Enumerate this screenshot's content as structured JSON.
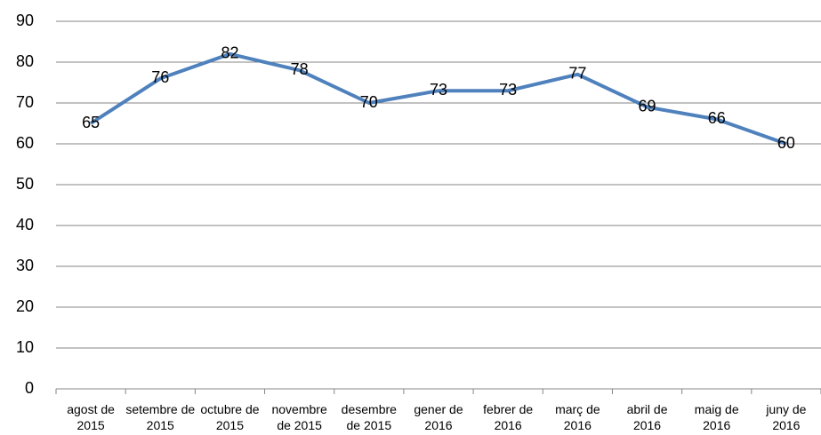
{
  "chart_data": {
    "type": "line",
    "categories": [
      "agost de 2015",
      "setembre de 2015",
      "octubre de 2015",
      "novembre de 2015",
      "desembre de 2015",
      "gener de 2016",
      "febrer de 2016",
      "març de 2016",
      "abril de 2016",
      "maig de 2016",
      "juny de 2016"
    ],
    "values": [
      65,
      76,
      82,
      78,
      70,
      73,
      73,
      77,
      69,
      66,
      60
    ],
    "color": "#4f81bd",
    "ylim": [
      0,
      90
    ],
    "yticks": [
      0,
      10,
      20,
      30,
      40,
      50,
      60,
      70,
      80,
      90
    ],
    "grid": true
  }
}
